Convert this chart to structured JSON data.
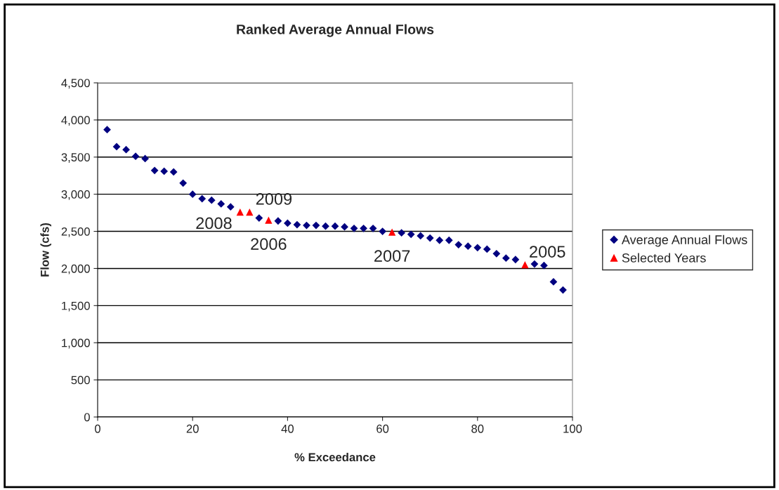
{
  "chart_data": {
    "type": "scatter",
    "title": "Ranked Average Annual Flows",
    "xlabel": "% Exceedance",
    "ylabel": "Flow (cfs)",
    "series": [
      {
        "name": "Average Annual Flows",
        "color": "#000080",
        "marker": "diamond",
        "x": [
          2,
          4,
          6,
          8,
          10,
          12,
          14,
          16,
          18,
          20,
          22,
          24,
          26,
          28,
          34,
          38,
          40,
          42,
          44,
          46,
          48,
          50,
          52,
          54,
          56,
          58,
          60,
          64,
          66,
          68,
          70,
          72,
          74,
          76,
          78,
          80,
          82,
          84,
          86,
          88,
          92,
          94,
          96,
          98
        ],
        "values": [
          3870,
          3640,
          3600,
          3510,
          3480,
          3320,
          3310,
          3300,
          3150,
          3000,
          2940,
          2920,
          2870,
          2830,
          2680,
          2640,
          2610,
          2590,
          2580,
          2580,
          2570,
          2570,
          2560,
          2540,
          2540,
          2540,
          2500,
          2480,
          2460,
          2440,
          2410,
          2380,
          2380,
          2320,
          2300,
          2280,
          2260,
          2200,
          2140,
          2120,
          2060,
          2040,
          1820,
          1710
        ]
      },
      {
        "name": "Selected Years",
        "color": "#ff0000",
        "marker": "triangle",
        "x": [
          30,
          32,
          36,
          62,
          90
        ],
        "values": [
          2760,
          2760,
          2650,
          2490,
          2050
        ]
      }
    ],
    "annotations": [
      {
        "text": "2008",
        "x": 30,
        "y": 2760
      },
      {
        "text": "2009",
        "x": 32,
        "y": 2760
      },
      {
        "text": "2006",
        "x": 36,
        "y": 2650
      },
      {
        "text": "2007",
        "x": 62,
        "y": 2490
      },
      {
        "text": "2005",
        "x": 90,
        "y": 2050
      }
    ],
    "xlim": [
      0,
      100
    ],
    "xticks": [
      0,
      20,
      40,
      60,
      80,
      100
    ],
    "ylim": [
      0,
      4500
    ],
    "yticks": [
      0,
      500,
      {
        "value": 1000,
        "label": "1,000"
      },
      {
        "value": 1500,
        "label": "1,500"
      },
      {
        "value": 2000,
        "label": "2,000"
      },
      {
        "value": 2500,
        "label": "2,500"
      },
      {
        "value": 3000,
        "label": "3,000"
      },
      {
        "value": 3500,
        "label": "3,500"
      },
      {
        "value": 4000,
        "label": "4,000"
      },
      {
        "value": 4500,
        "label": "4,500"
      }
    ],
    "grid": "y",
    "legend": "right"
  }
}
